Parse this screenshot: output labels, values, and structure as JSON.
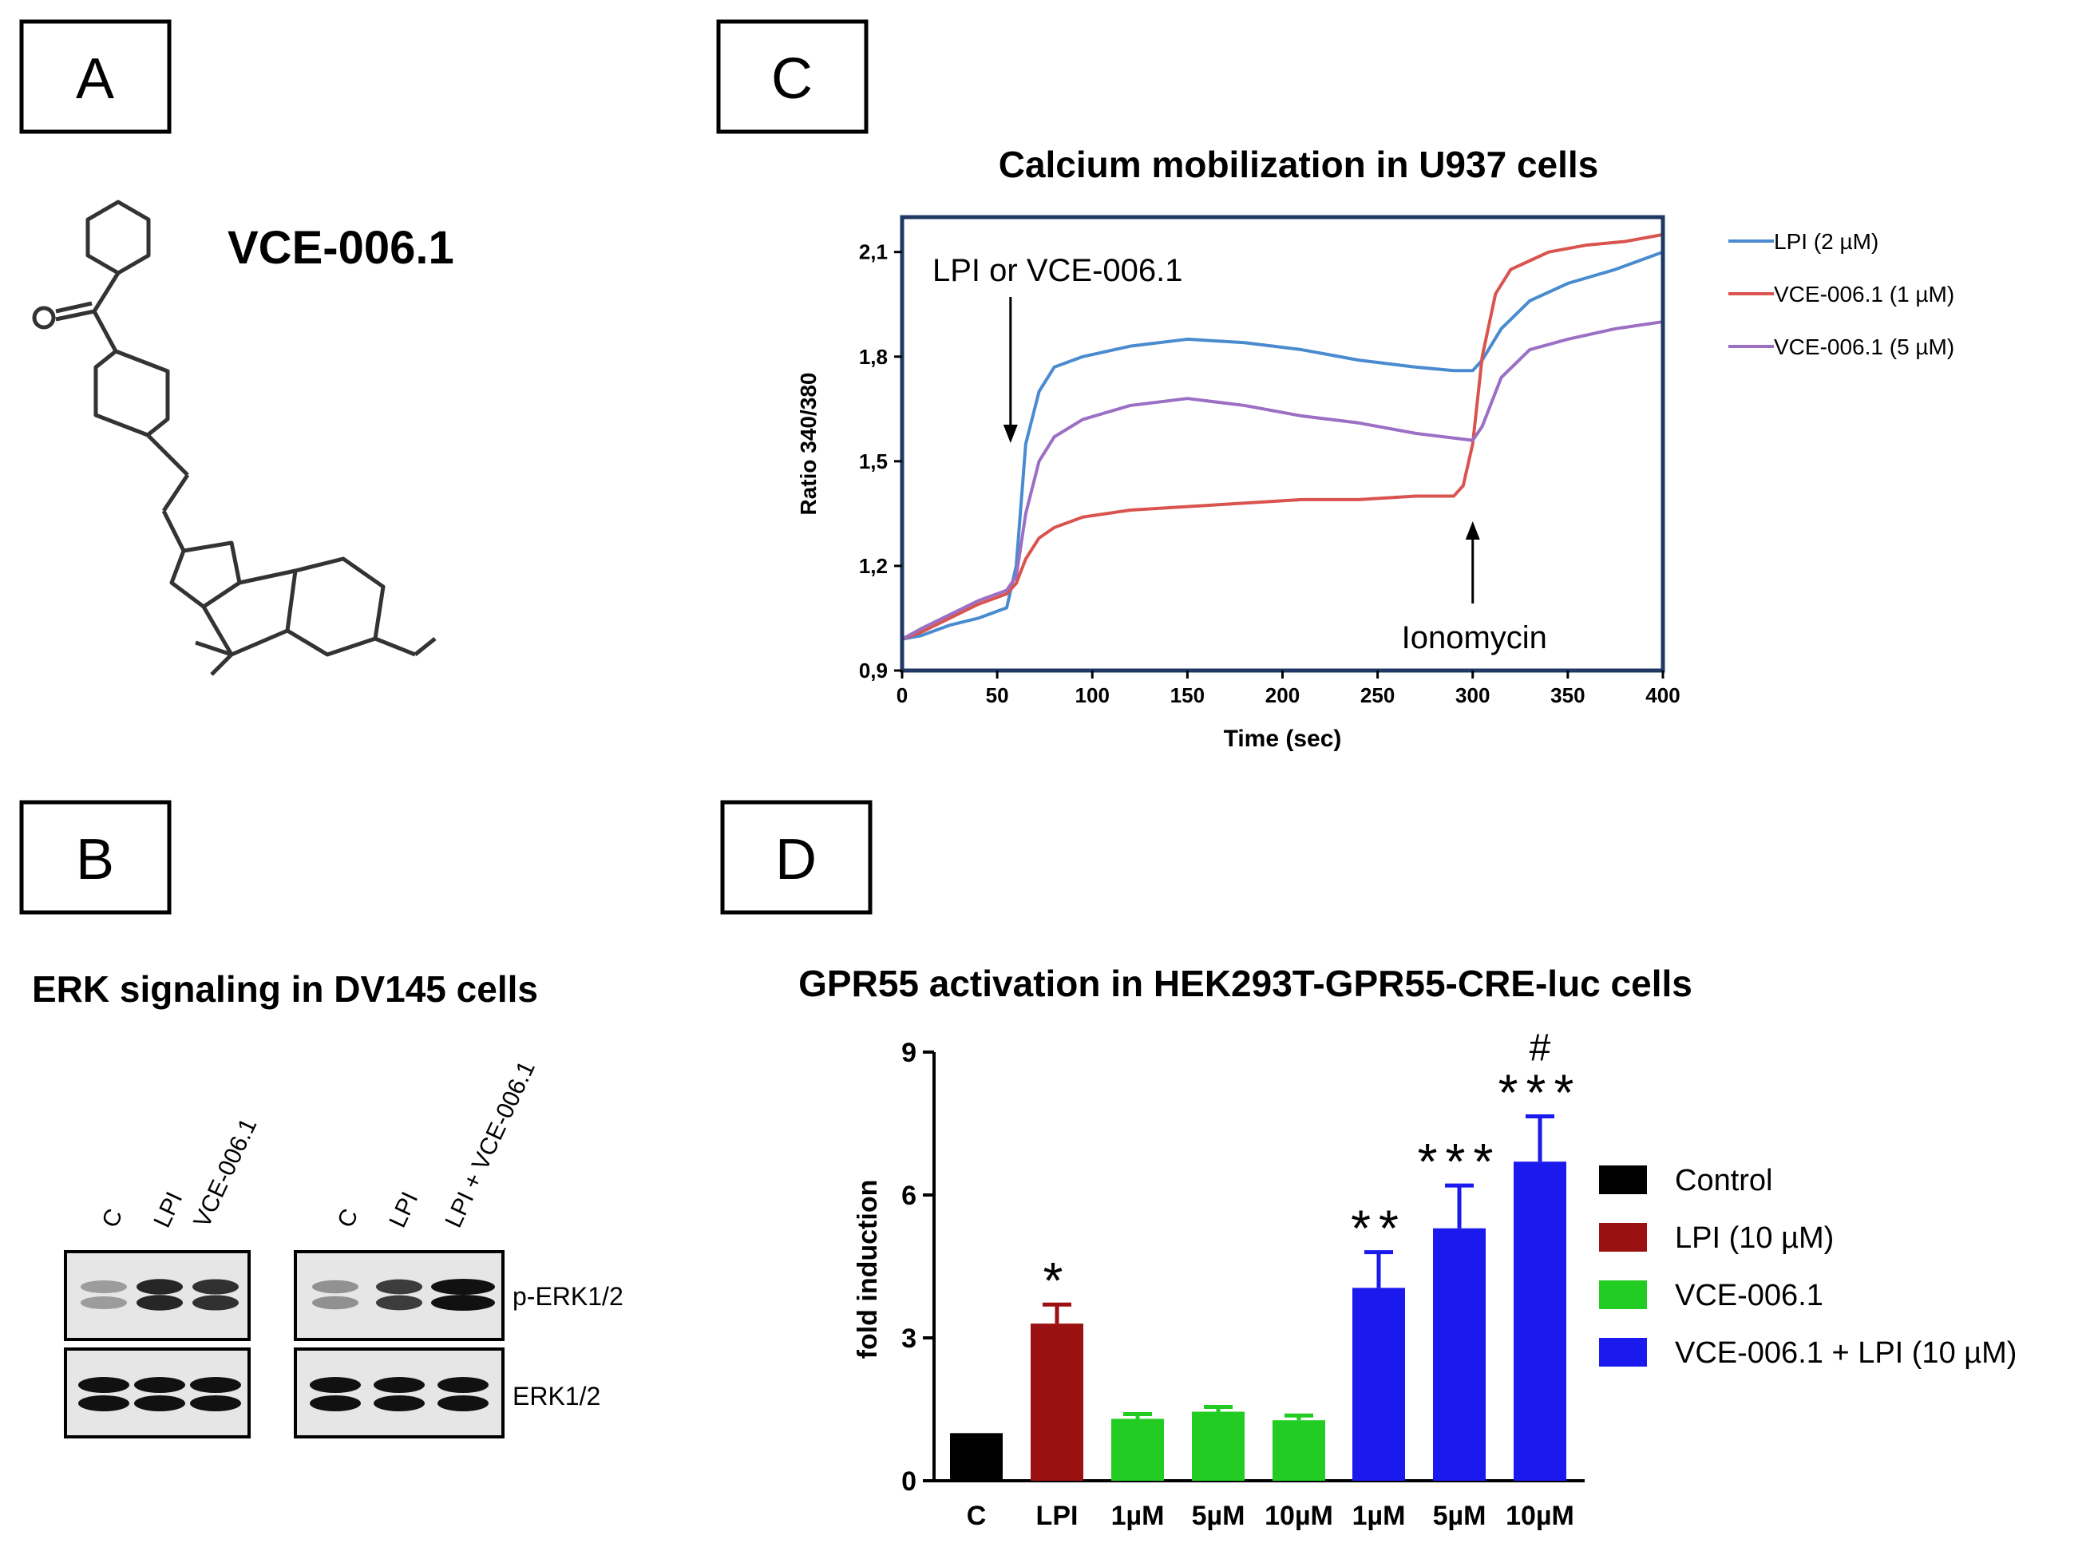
{
  "panels": {
    "a": {
      "letter": "A",
      "compound_name": "VCE-006.1"
    },
    "b": {
      "letter": "B",
      "title": "ERK signaling in DV145 cells",
      "lanes_left": [
        "C",
        "LPI",
        "VCE-006.1"
      ],
      "lanes_right": [
        "C",
        "LPI",
        "LPI + VCE-006.1"
      ],
      "band_labels": [
        "p-ERK1/2",
        "ERK1/2"
      ]
    },
    "c": {
      "letter": "C"
    },
    "d": {
      "letter": "D"
    }
  },
  "chart_data": [
    {
      "id": "calcium",
      "type": "line",
      "title": "Calcium mobilization in U937 cells",
      "xlabel": "Time (sec)",
      "ylabel": "Ratio 340/380",
      "xlim": [
        0,
        400
      ],
      "ylim": [
        0.9,
        2.2
      ],
      "xticks": [
        0,
        50,
        100,
        150,
        200,
        250,
        300,
        350,
        400
      ],
      "yticks": [
        "0,9",
        "1,2",
        "1,5",
        "1,8",
        "2,1"
      ],
      "ytick_values": [
        0.9,
        1.2,
        1.5,
        1.8,
        2.1
      ],
      "annotations": [
        "LPI or VCE-006.1",
        "Ionomycin"
      ],
      "annotation_x": [
        57,
        300
      ],
      "series": [
        {
          "name": "LPI (2 µM)",
          "color": "#4a8bd0",
          "x": [
            0,
            10,
            25,
            40,
            55,
            60,
            65,
            72,
            80,
            95,
            120,
            150,
            180,
            210,
            240,
            270,
            290,
            300,
            305,
            315,
            330,
            350,
            375,
            400
          ],
          "y": [
            0.99,
            1.0,
            1.03,
            1.05,
            1.08,
            1.2,
            1.55,
            1.7,
            1.77,
            1.8,
            1.83,
            1.85,
            1.84,
            1.82,
            1.79,
            1.77,
            1.76,
            1.76,
            1.79,
            1.88,
            1.96,
            2.01,
            2.05,
            2.1
          ]
        },
        {
          "name": "VCE-006.1 (1 µM)",
          "color": "#d9534f",
          "x": [
            0,
            10,
            25,
            40,
            55,
            60,
            65,
            72,
            80,
            95,
            120,
            150,
            180,
            210,
            240,
            270,
            290,
            295,
            300,
            305,
            312,
            320,
            340,
            360,
            380,
            400
          ],
          "y": [
            0.99,
            1.01,
            1.05,
            1.09,
            1.12,
            1.15,
            1.22,
            1.28,
            1.31,
            1.34,
            1.36,
            1.37,
            1.38,
            1.39,
            1.39,
            1.4,
            1.4,
            1.43,
            1.55,
            1.8,
            1.98,
            2.05,
            2.1,
            2.12,
            2.13,
            2.15
          ]
        },
        {
          "name": "VCE-006.1 (5 µM)",
          "color": "#9b6fc4",
          "x": [
            0,
            10,
            25,
            40,
            55,
            60,
            65,
            72,
            80,
            95,
            120,
            150,
            180,
            210,
            240,
            270,
            300,
            305,
            315,
            330,
            350,
            375,
            400
          ],
          "y": [
            0.99,
            1.02,
            1.06,
            1.1,
            1.13,
            1.17,
            1.35,
            1.5,
            1.57,
            1.62,
            1.66,
            1.68,
            1.66,
            1.63,
            1.61,
            1.58,
            1.56,
            1.6,
            1.74,
            1.82,
            1.85,
            1.88,
            1.9
          ]
        }
      ]
    },
    {
      "id": "gpr55",
      "type": "bar",
      "title": "GPR55 activation in HEK293T-GPR55-CRE-luc cells",
      "ylabel": "fold induction",
      "ylim": [
        0,
        9
      ],
      "yticks": [
        0,
        3,
        6,
        9
      ],
      "categories": [
        "C",
        "LPI",
        "1µM",
        "5µM",
        "10µM",
        "1µM",
        "5µM",
        "10µM"
      ],
      "values": [
        1.0,
        3.3,
        1.3,
        1.45,
        1.27,
        4.05,
        5.3,
        6.7
      ],
      "errors": [
        0,
        0.4,
        0.1,
        0.1,
        0.1,
        0.75,
        0.9,
        0.95
      ],
      "groups": [
        0,
        1,
        2,
        2,
        2,
        3,
        3,
        3
      ],
      "significance": [
        "",
        "*",
        "",
        "",
        "",
        "**",
        "***",
        "***"
      ],
      "extra_marks": [
        "",
        "",
        "",
        "",
        "",
        "",
        "",
        "#"
      ],
      "legend": [
        {
          "label": "Control",
          "color": "#000000"
        },
        {
          "label": "LPI (10 µM)",
          "color": "#9b1111"
        },
        {
          "label": "VCE-006.1",
          "color": "#22cc22"
        },
        {
          "label": "VCE-006.1 + LPI (10 µM)",
          "color": "#1a1aee"
        }
      ]
    }
  ]
}
